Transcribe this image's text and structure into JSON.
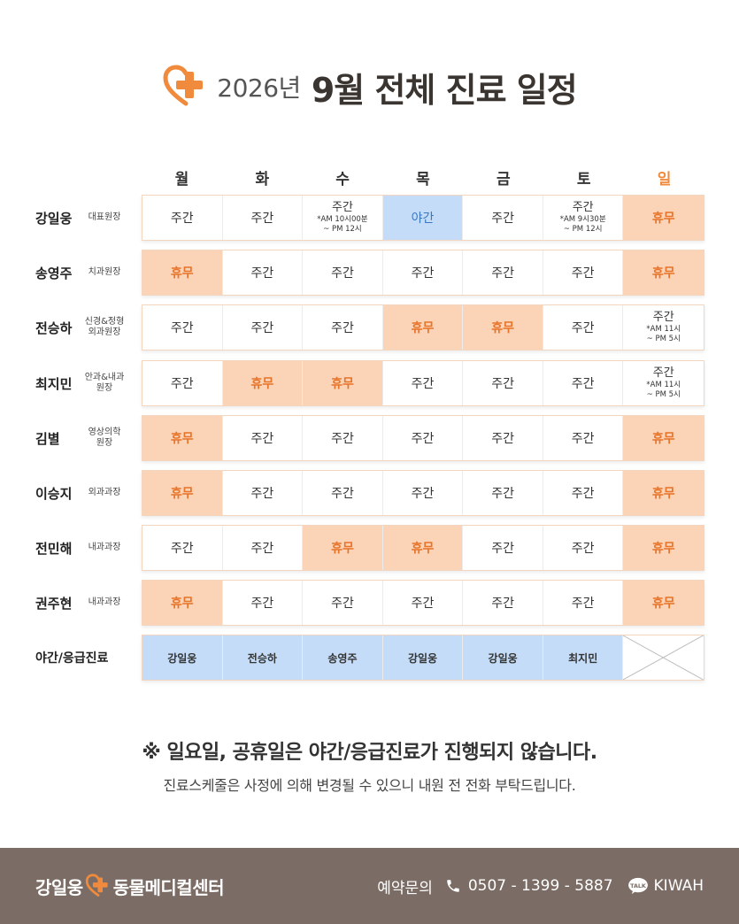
{
  "title": {
    "year": "2026년",
    "main": "9월 전체 진료 일정"
  },
  "days": [
    "월",
    "화",
    "수",
    "목",
    "금",
    "토",
    "일"
  ],
  "doctors": [
    {
      "name": "강일웅",
      "title": [
        "대표원장"
      ],
      "cells": [
        {
          "main": "주간",
          "type": "day"
        },
        {
          "main": "주간",
          "type": "day"
        },
        {
          "main": "주간",
          "sub": [
            "*AM 10시00분",
            "~ PM 12시"
          ],
          "type": "day"
        },
        {
          "main": "야간",
          "type": "night"
        },
        {
          "main": "주간",
          "type": "day"
        },
        {
          "main": "주간",
          "sub": [
            "*AM 9시30분",
            "~ PM 12시"
          ],
          "type": "day"
        },
        {
          "main": "휴무",
          "type": "off"
        }
      ]
    },
    {
      "name": "송영주",
      "title": [
        "치과원장"
      ],
      "cells": [
        {
          "main": "휴무",
          "type": "off"
        },
        {
          "main": "주간",
          "type": "day"
        },
        {
          "main": "주간",
          "type": "day"
        },
        {
          "main": "주간",
          "type": "day"
        },
        {
          "main": "주간",
          "type": "day"
        },
        {
          "main": "주간",
          "type": "day"
        },
        {
          "main": "휴무",
          "type": "off"
        }
      ]
    },
    {
      "name": "전승하",
      "title": [
        "신경&정형",
        "외과원장"
      ],
      "cells": [
        {
          "main": "주간",
          "type": "day"
        },
        {
          "main": "주간",
          "type": "day"
        },
        {
          "main": "주간",
          "type": "day"
        },
        {
          "main": "휴무",
          "type": "off"
        },
        {
          "main": "휴무",
          "type": "off"
        },
        {
          "main": "주간",
          "type": "day"
        },
        {
          "main": "주간",
          "sub": [
            "*AM 11시",
            "~ PM 5시"
          ],
          "type": "day"
        }
      ]
    },
    {
      "name": "최지민",
      "title": [
        "안과&내과",
        "원장"
      ],
      "cells": [
        {
          "main": "주간",
          "type": "day"
        },
        {
          "main": "휴무",
          "type": "off"
        },
        {
          "main": "휴무",
          "type": "off"
        },
        {
          "main": "주간",
          "type": "day"
        },
        {
          "main": "주간",
          "type": "day"
        },
        {
          "main": "주간",
          "type": "day"
        },
        {
          "main": "주간",
          "sub": [
            "*AM 11시",
            "~ PM 5시"
          ],
          "type": "day"
        }
      ]
    },
    {
      "name": "김별",
      "title": [
        "영상의학",
        "원장"
      ],
      "cells": [
        {
          "main": "휴무",
          "type": "off"
        },
        {
          "main": "주간",
          "type": "day"
        },
        {
          "main": "주간",
          "type": "day"
        },
        {
          "main": "주간",
          "type": "day"
        },
        {
          "main": "주간",
          "type": "day"
        },
        {
          "main": "주간",
          "type": "day"
        },
        {
          "main": "휴무",
          "type": "off"
        }
      ]
    },
    {
      "name": "이승지",
      "title": [
        "외과과장"
      ],
      "cells": [
        {
          "main": "휴무",
          "type": "off"
        },
        {
          "main": "주간",
          "type": "day"
        },
        {
          "main": "주간",
          "type": "day"
        },
        {
          "main": "주간",
          "type": "day"
        },
        {
          "main": "주간",
          "type": "day"
        },
        {
          "main": "주간",
          "type": "day"
        },
        {
          "main": "휴무",
          "type": "off"
        }
      ]
    },
    {
      "name": "전민해",
      "title": [
        "내과과장"
      ],
      "cells": [
        {
          "main": "주간",
          "type": "day"
        },
        {
          "main": "주간",
          "type": "day"
        },
        {
          "main": "휴무",
          "type": "off"
        },
        {
          "main": "휴무",
          "type": "off"
        },
        {
          "main": "주간",
          "type": "day"
        },
        {
          "main": "주간",
          "type": "day"
        },
        {
          "main": "휴무",
          "type": "off"
        }
      ]
    },
    {
      "name": "권주현",
      "title": [
        "내과과장"
      ],
      "cells": [
        {
          "main": "휴무",
          "type": "off"
        },
        {
          "main": "주간",
          "type": "day"
        },
        {
          "main": "주간",
          "type": "day"
        },
        {
          "main": "주간",
          "type": "day"
        },
        {
          "main": "주간",
          "type": "day"
        },
        {
          "main": "주간",
          "type": "day"
        },
        {
          "main": "휴무",
          "type": "off"
        }
      ]
    }
  ],
  "night_emergency": {
    "label": "야간/응급진료",
    "doctors": [
      "강일웅",
      "전승하",
      "송영주",
      "강일웅",
      "강일웅",
      "최지민",
      ""
    ]
  },
  "notice": {
    "line1": "※ 일요일, 공휴일은 야간/응급진료가 진행되지 않습니다.",
    "line2": "진료스케줄은 사정에 의해 변경될 수 있으니 내원 전 전화 부탁드립니다."
  },
  "footer": {
    "brand_left": "강일웅",
    "brand_right": "동물메디컬센터",
    "contact_label": "예약문의",
    "phone": "0507 - 1399 - 5887",
    "talk_badge": "TALK",
    "kakao_id": "KIWAH"
  },
  "colors": {
    "accent": "#f08a3c",
    "off_bg": "#fbd3b6",
    "night_bg": "#c4dcf7",
    "footer_bg": "#7b6d65"
  }
}
